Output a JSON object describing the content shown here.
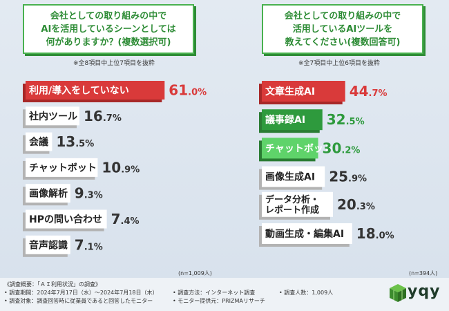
{
  "chart_data": [
    {
      "type": "bar",
      "orientation": "horizontal",
      "title_lines": [
        "会社としての取り組みの中で",
        "AIを活用しているシーンとしては",
        "何がありますか？(複数選択可)"
      ],
      "note": "※全8項目中上位7項目を抜粋",
      "n_label": "(n=1,009人)",
      "categories": [
        "利用/導入をしていない",
        "社内ツール",
        "会議",
        "チャットボット",
        "画像解析",
        "HPの問い合わせ",
        "音声認識"
      ],
      "values": [
        61.0,
        16.7,
        13.5,
        10.9,
        9.3,
        7.4,
        7.1
      ],
      "value_labels": [
        {
          "int": "61",
          "dec": ".0",
          "pct": "%"
        },
        {
          "int": "16",
          "dec": ".7",
          "pct": "%"
        },
        {
          "int": "13",
          "dec": ".5",
          "pct": "%"
        },
        {
          "int": "10",
          "dec": ".9",
          "pct": "%"
        },
        {
          "int": "9",
          "dec": ".3",
          "pct": "%"
        },
        {
          "int": "7",
          "dec": ".4",
          "pct": "%"
        },
        {
          "int": "7",
          "dec": ".1",
          "pct": "%"
        }
      ],
      "bar_colors": [
        "#d93a3a",
        "#c4c4c4",
        "#c4c4c4",
        "#c4c4c4",
        "#c4c4c4",
        "#c4c4c4",
        "#c4c4c4"
      ],
      "highlight_value_color": "#d93a3a",
      "unit": "%"
    },
    {
      "type": "bar",
      "orientation": "horizontal",
      "title_lines": [
        "会社としての取り組みの中で",
        "活用しているAIツールを",
        "教えてください(複数回答可)"
      ],
      "note": "※全7項目中上位6項目を抜粋",
      "n_label": "(n=394人)",
      "categories": [
        [
          "文章生成AI"
        ],
        [
          "議事録AI"
        ],
        [
          "チャットボット"
        ],
        [
          "画像生成AI"
        ],
        [
          "データ分析・",
          "レポート作成"
        ],
        [
          "動画生成・編集AI"
        ]
      ],
      "values": [
        44.7,
        32.5,
        30.2,
        25.9,
        20.3,
        18.0
      ],
      "value_labels": [
        {
          "int": "44",
          "dec": ".7",
          "pct": "%"
        },
        {
          "int": "32",
          "dec": ".5",
          "pct": "%"
        },
        {
          "int": "30",
          "dec": ".2",
          "pct": "%"
        },
        {
          "int": "25",
          "dec": ".9",
          "pct": "%"
        },
        {
          "int": "20",
          "dec": ".3",
          "pct": "%"
        },
        {
          "int": "18",
          "dec": ".0",
          "pct": "%"
        }
      ],
      "bar_colors": [
        "#d93a3a",
        "#2e9a3d",
        "#5fd36a",
        "#c4c4c4",
        "#c4c4c4",
        "#c4c4c4"
      ],
      "value_colors": [
        "#d93a3a",
        "#2e9a3d",
        "#2e9a3d",
        "#333333",
        "#333333",
        "#333333"
      ],
      "unit": "%"
    }
  ],
  "footer": {
    "heading": "《調査概要：「ＡＩ利用状況」の調査》",
    "period": "• 調査期間：2024年7月17日（水）〜2024年7月18日（木）",
    "target": "• 調査対象：調査回答時に従業員であると回答したモニター",
    "method": "• 調査方法：インターネット調査",
    "provider": "• モニター提供元：PRIZMAリサーチ",
    "count": "• 調査人数：1,009人"
  },
  "logo": {
    "text": "yqy",
    "icon": "cube-logo-icon"
  },
  "colors": {
    "accent_green": "#49b14f",
    "accent_red": "#d93a3a"
  }
}
